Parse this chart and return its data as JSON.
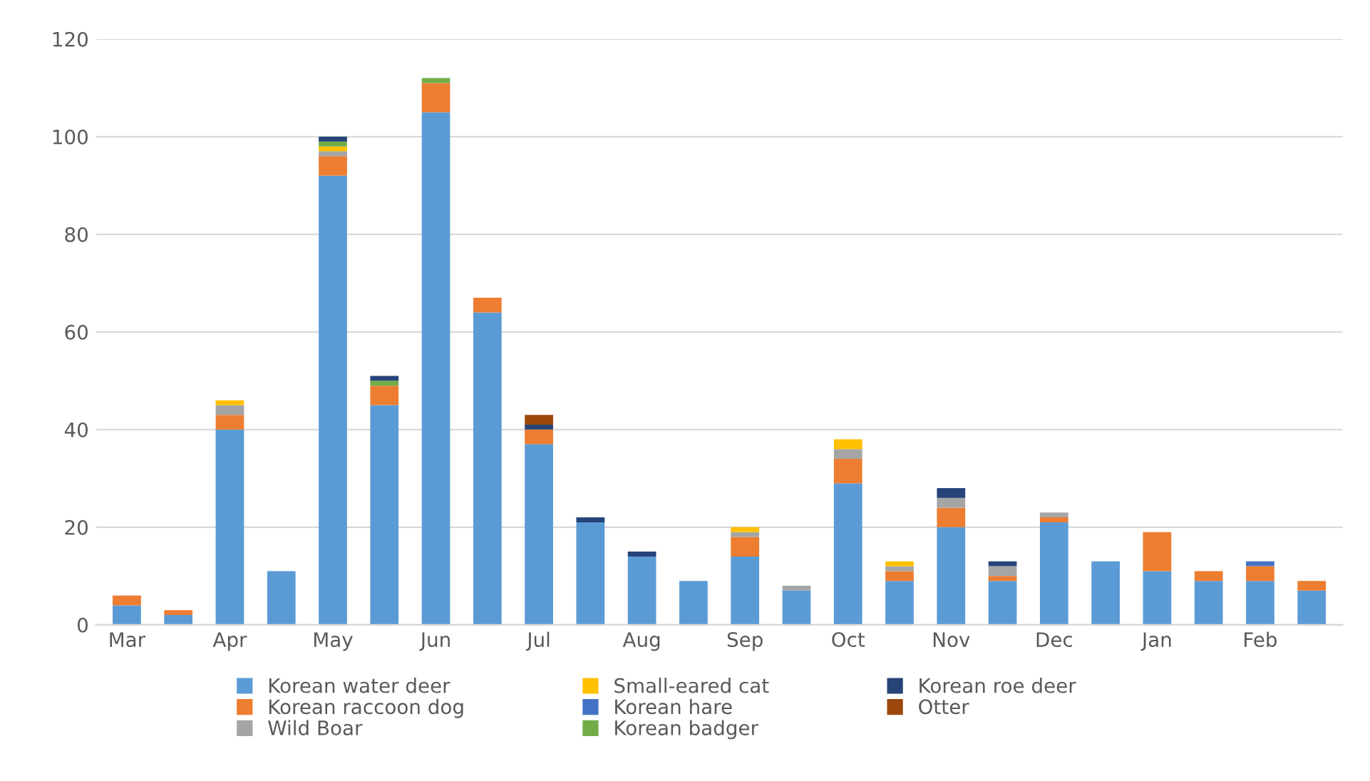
{
  "chart_data": {
    "type": "bar",
    "stacked": true,
    "categories": [
      "Mar",
      null,
      "Apr",
      null,
      "May",
      null,
      "Jun",
      null,
      "Jul",
      null,
      "Aug",
      null,
      "Sep",
      null,
      "Oct",
      null,
      "Nov",
      null,
      "Dec",
      null,
      "Jan",
      null,
      "Feb",
      null
    ],
    "series": [
      {
        "name": "Korean water deer",
        "color": "#5b9bd5",
        "values": [
          4,
          2,
          40,
          11,
          92,
          45,
          105,
          64,
          37,
          21,
          14,
          9,
          14,
          7,
          29,
          9,
          20,
          9,
          21,
          13,
          11,
          9,
          9,
          7
        ]
      },
      {
        "name": "Korean raccoon dog",
        "color": "#ed7d31",
        "values": [
          2,
          1,
          3,
          0,
          4,
          4,
          6,
          3,
          3,
          0,
          0,
          0,
          4,
          0,
          5,
          2,
          4,
          1,
          1,
          0,
          8,
          2,
          3,
          2
        ]
      },
      {
        "name": "Wild Boar",
        "color": "#a5a5a5",
        "values": [
          0,
          0,
          2,
          0,
          1,
          0,
          0,
          0,
          0,
          0,
          0,
          0,
          1,
          1,
          2,
          1,
          2,
          2,
          1,
          0,
          0,
          0,
          0,
          0
        ]
      },
      {
        "name": "Small-eared cat",
        "color": "#ffc000",
        "values": [
          0,
          0,
          1,
          0,
          1,
          0,
          0,
          0,
          0,
          0,
          0,
          0,
          1,
          0,
          2,
          1,
          0,
          0,
          0,
          0,
          0,
          0,
          0,
          0
        ]
      },
      {
        "name": "Korean hare",
        "color": "#4472c4",
        "values": [
          0,
          0,
          0,
          0,
          0,
          0,
          0,
          0,
          0,
          0,
          0,
          0,
          0,
          0,
          0,
          0,
          0,
          0,
          0,
          0,
          0,
          0,
          1,
          0
        ]
      },
      {
        "name": "Korean badger",
        "color": "#70ad47",
        "values": [
          0,
          0,
          0,
          0,
          1,
          1,
          1,
          0,
          0,
          0,
          0,
          0,
          0,
          0,
          0,
          0,
          0,
          0,
          0,
          0,
          0,
          0,
          0,
          0
        ]
      },
      {
        "name": "Korean roe deer",
        "color": "#264478",
        "values": [
          0,
          0,
          0,
          0,
          1,
          1,
          0,
          0,
          1,
          1,
          1,
          0,
          0,
          0,
          0,
          0,
          2,
          1,
          0,
          0,
          0,
          0,
          0,
          0
        ]
      },
      {
        "name": "Otter",
        "color": "#9e480e",
        "values": [
          0,
          0,
          0,
          0,
          0,
          0,
          0,
          0,
          2,
          0,
          0,
          0,
          0,
          0,
          0,
          0,
          0,
          0,
          0,
          0,
          0,
          0,
          0,
          0
        ]
      }
    ],
    "ylim": [
      0,
      120
    ],
    "yticks": [
      0,
      20,
      40,
      60,
      80,
      100,
      120
    ],
    "grid": "y",
    "legend": "bottom"
  }
}
